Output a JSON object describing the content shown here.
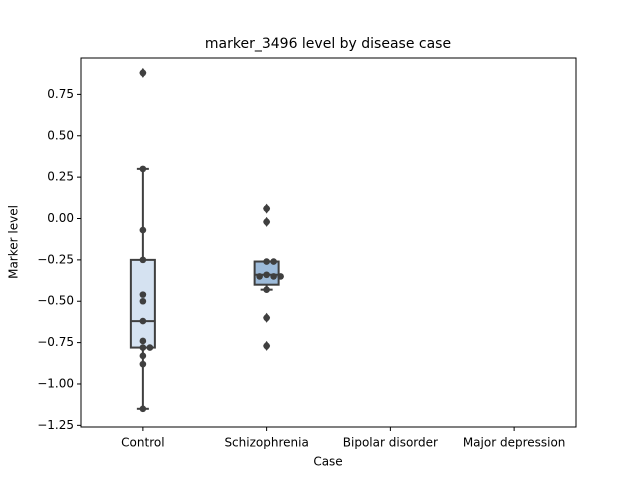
{
  "chart_data": {
    "type": "box",
    "title": "marker_3496 level by disease case",
    "x_label": "Case",
    "y_label": "Marker level",
    "categories": [
      "Control",
      "Schizophrenia",
      "Bipolar disorder",
      "Major depression"
    ],
    "colors": [
      "#d5e2f1",
      "#9dbbda",
      null,
      null
    ],
    "boxes": [
      {
        "whislo": -1.15,
        "q1": -0.78,
        "med": -0.62,
        "q3": -0.25,
        "whishi": 0.3,
        "fliers": [
          0.88
        ]
      },
      {
        "whislo": -0.43,
        "q1": -0.4,
        "med": -0.34,
        "q3": -0.26,
        "whishi": -0.26,
        "fliers": [
          0.06,
          -0.02,
          -0.6,
          -0.77
        ]
      },
      null,
      null
    ],
    "points": [
      [
        0.88,
        0.3,
        -0.07,
        -0.25,
        -0.46,
        -0.5,
        -0.62,
        -0.74,
        -0.78,
        -0.78,
        -0.83,
        -0.88,
        -1.15
      ],
      [
        0.06,
        -0.02,
        -0.26,
        -0.26,
        -0.34,
        -0.35,
        -0.35,
        -0.35,
        -0.43,
        -0.6,
        -0.77
      ],
      [],
      []
    ],
    "ylim": [
      -1.26,
      0.97
    ],
    "yticks": [
      0.75,
      {
        "value": 0.5,
        "label": "0.50"
      },
      {
        "value": 0.25,
        "label": "0.25"
      },
      {
        "value": 0,
        "label": "0.00"
      },
      {
        "value": -0.25,
        "label": "−0.25"
      },
      {
        "value": -0.5,
        "label": "−0.50"
      },
      {
        "value": -0.75,
        "label": "−0.75"
      },
      {
        "value": -1,
        "label": "−1.00"
      },
      {
        "value": -1.25,
        "label": "−1.25"
      }
    ]
  }
}
